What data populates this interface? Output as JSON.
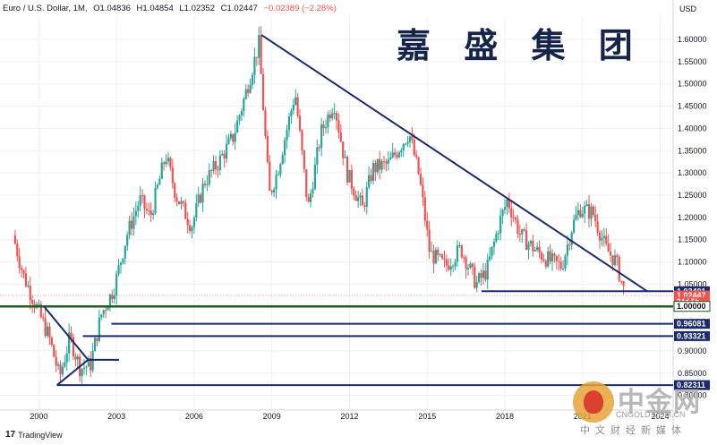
{
  "header": {
    "symbol": "Euro / U.S. Dollar, 1M,",
    "open": "O1.04836",
    "high": "H1.04854",
    "low": "L1.02352",
    "close": "C1.02447",
    "change": "−0.02389 (−2.28%)"
  },
  "currency_label": "USD",
  "brand_title": "嘉 盛 集 团",
  "footer_label": "TradingView",
  "watermark": {
    "big": "中金网",
    "site": "CNGOLD.COM.CN",
    "sub": "中文财经新媒体"
  },
  "colors": {
    "up": "#26a69a",
    "down": "#ef5350",
    "trendline": "#1a2a6c",
    "parity": "#1b5e20"
  },
  "chart_data": {
    "type": "candlestick",
    "title": "Euro / U.S. Dollar, 1M",
    "xlabel": "",
    "ylabel": "USD",
    "ylim": [
      0.8,
      1.66
    ],
    "xlim": [
      1998.5,
      2024.5
    ],
    "y_ticks": [
      "1.60000",
      "1.55000",
      "1.50000",
      "1.45000",
      "1.40000",
      "1.35000",
      "1.30000",
      "1.25000",
      "1.20000",
      "1.15000",
      "1.10000",
      "1.05000",
      "0.90000",
      "0.85000",
      "0.80000"
    ],
    "x_ticks": [
      "2000",
      "2003",
      "2006",
      "2009",
      "2012",
      "2015",
      "2018",
      "2021",
      "2024"
    ],
    "price_path": [
      [
        1999.0,
        1.16
      ],
      [
        1999.4,
        1.07
      ],
      [
        1999.9,
        1.0
      ],
      [
        2000.4,
        0.93
      ],
      [
        2000.8,
        0.84
      ],
      [
        2001.2,
        0.93
      ],
      [
        2001.6,
        0.86
      ],
      [
        2002.0,
        0.87
      ],
      [
        2002.4,
        0.98
      ],
      [
        2002.9,
        1.04
      ],
      [
        2003.4,
        1.16
      ],
      [
        2003.9,
        1.24
      ],
      [
        2004.3,
        1.2
      ],
      [
        2004.9,
        1.34
      ],
      [
        2005.3,
        1.25
      ],
      [
        2005.9,
        1.18
      ],
      [
        2006.4,
        1.28
      ],
      [
        2006.9,
        1.32
      ],
      [
        2007.5,
        1.38
      ],
      [
        2007.9,
        1.46
      ],
      [
        2008.5,
        1.59
      ],
      [
        2008.9,
        1.25
      ],
      [
        2009.2,
        1.3
      ],
      [
        2009.9,
        1.48
      ],
      [
        2010.4,
        1.22
      ],
      [
        2010.9,
        1.39
      ],
      [
        2011.4,
        1.46
      ],
      [
        2011.9,
        1.3
      ],
      [
        2012.5,
        1.22
      ],
      [
        2012.9,
        1.31
      ],
      [
        2013.5,
        1.32
      ],
      [
        2014.3,
        1.39
      ],
      [
        2014.7,
        1.29
      ],
      [
        2015.1,
        1.12
      ],
      [
        2015.7,
        1.09
      ],
      [
        2016.3,
        1.13
      ],
      [
        2016.9,
        1.05
      ],
      [
        2017.3,
        1.08
      ],
      [
        2017.8,
        1.19
      ],
      [
        2018.1,
        1.24
      ],
      [
        2018.6,
        1.16
      ],
      [
        2019.3,
        1.12
      ],
      [
        2019.8,
        1.1
      ],
      [
        2020.2,
        1.09
      ],
      [
        2020.6,
        1.18
      ],
      [
        2020.9,
        1.22
      ],
      [
        2021.4,
        1.21
      ],
      [
        2021.9,
        1.13
      ],
      [
        2022.3,
        1.1
      ],
      [
        2022.65,
        1.024
      ]
    ],
    "price_labels": [
      {
        "text": "1.03401",
        "value": 1.03401,
        "style": "line"
      },
      {
        "text": "1.02447",
        "value": 1.02447,
        "style": "last"
      },
      {
        "text": "24d 5h",
        "value": 1.0115,
        "style": "timer"
      },
      {
        "text": "1.00000",
        "value": 1.0,
        "style": "parity"
      },
      {
        "text": "0.96081",
        "value": 0.96081,
        "style": "line"
      },
      {
        "text": "0.93321",
        "value": 0.93321,
        "style": "line"
      },
      {
        "text": "0.82311",
        "value": 0.82311,
        "style": "line"
      }
    ],
    "drawings": {
      "horizontal_lines": [
        {
          "y": 1.03401,
          "x_from": 2017.1
        },
        {
          "y": 0.96081,
          "x_from": 2002.8
        },
        {
          "y": 0.93321,
          "x_from": 2001.7
        },
        {
          "y": 0.82311,
          "x_from": 2000.7
        },
        {
          "y": 1.0,
          "x_from": 1998.5,
          "kind": "parity"
        }
      ],
      "trendlines": [
        [
          [
            2008.6,
            1.61
          ],
          [
            2023.5,
            1.034
          ]
        ],
        [
          [
            2000.2,
            1.0
          ],
          [
            2001.9,
            0.88
          ]
        ],
        [
          [
            2000.7,
            0.823
          ],
          [
            2001.9,
            0.88
          ]
        ],
        [
          [
            2001.9,
            0.88
          ],
          [
            2003.1,
            0.88
          ]
        ]
      ]
    }
  }
}
